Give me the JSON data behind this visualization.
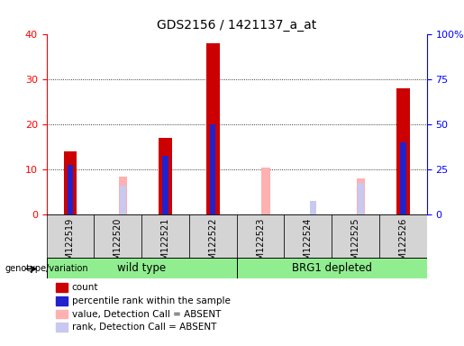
{
  "title": "GDS2156 / 1421137_a_at",
  "samples": [
    "GSM122519",
    "GSM122520",
    "GSM122521",
    "GSM122522",
    "GSM122523",
    "GSM122524",
    "GSM122525",
    "GSM122526"
  ],
  "count_values": [
    14,
    0,
    17,
    38,
    0,
    0,
    0,
    28
  ],
  "percentile_rank": [
    11,
    0,
    13,
    20,
    0,
    0,
    0,
    16
  ],
  "absent_value": [
    0,
    8.5,
    0,
    0,
    10.5,
    0,
    8,
    0
  ],
  "absent_rank": [
    0,
    6.5,
    0,
    0,
    0,
    3,
    7,
    0
  ],
  "ylim_left": [
    0,
    40
  ],
  "ylim_right": [
    0,
    100
  ],
  "yticks_left": [
    0,
    10,
    20,
    30,
    40
  ],
  "yticks_right": [
    0,
    25,
    50,
    75,
    100
  ],
  "ytick_right_labels": [
    "0",
    "25",
    "50",
    "75",
    "100%"
  ],
  "count_color": "#cc0000",
  "rank_color": "#2222cc",
  "absent_value_color": "#ffb0b0",
  "absent_rank_color": "#c8c8f0",
  "group_box_color": "#90ee90",
  "legend_items": [
    "count",
    "percentile rank within the sample",
    "value, Detection Call = ABSENT",
    "rank, Detection Call = ABSENT"
  ],
  "legend_colors": [
    "#cc0000",
    "#2222cc",
    "#ffb0b0",
    "#c8c8f0"
  ],
  "tick_gray": "#d4d4d4",
  "bar_facecolor": "#d4d4d4"
}
